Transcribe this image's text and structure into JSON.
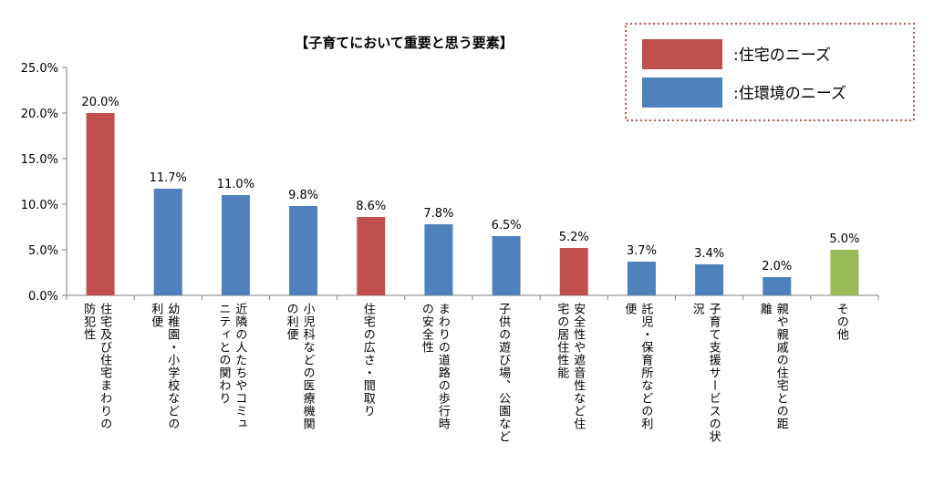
{
  "colors": {
    "housing": "#C0504D",
    "environment": "#4F81BD",
    "other": "#9BBB59",
    "legend_border": "#C0504D",
    "axis": "#7f7f7f"
  },
  "legend": [
    {
      "label": ":住宅のニーズ",
      "color": "#C0504D"
    },
    {
      "label": ":住環境のニーズ",
      "color": "#4F81BD"
    }
  ],
  "chart_data": {
    "type": "bar",
    "title": "【子育てにおいて重要と思う要素】",
    "ylim": [
      0,
      25
    ],
    "yticks": [
      "0.0%",
      "5.0%",
      "10.0%",
      "15.0%",
      "20.0%",
      "25.0%"
    ],
    "grid": false,
    "legend_position": "top-right",
    "categories": [
      [
        "住宅及び住宅まわりの",
        "防犯性"
      ],
      [
        "幼稚園・小学校などの",
        "利便"
      ],
      [
        "近隣の人たちやコミュ",
        "ニティとの関わり"
      ],
      [
        "小児科などの医療機関",
        "の利便"
      ],
      [
        "住宅の広さ・間取り"
      ],
      [
        "まわりの道路の歩行時",
        "の安全性"
      ],
      [
        "子供の遊び場、公園など"
      ],
      [
        "安全性や遮音性など住",
        "宅の居住性能"
      ],
      [
        "託児・保育所などの利",
        "便"
      ],
      [
        "子育て支援サービスの状",
        "況"
      ],
      [
        "親や親戚の住宅との距",
        "離"
      ],
      [
        "その他"
      ]
    ],
    "values": [
      20.0,
      11.7,
      11.0,
      9.8,
      8.6,
      7.8,
      6.5,
      5.2,
      3.7,
      3.4,
      2.0,
      5.0
    ],
    "value_labels": [
      "20.0%",
      "11.7%",
      "11.0%",
      "9.8%",
      "8.6%",
      "7.8%",
      "6.5%",
      "5.2%",
      "3.7%",
      "3.4%",
      "2.0%",
      "5.0%"
    ],
    "bar_colors": [
      "#C0504D",
      "#4F81BD",
      "#4F81BD",
      "#4F81BD",
      "#C0504D",
      "#4F81BD",
      "#4F81BD",
      "#C0504D",
      "#4F81BD",
      "#4F81BD",
      "#4F81BD",
      "#9BBB59"
    ]
  }
}
